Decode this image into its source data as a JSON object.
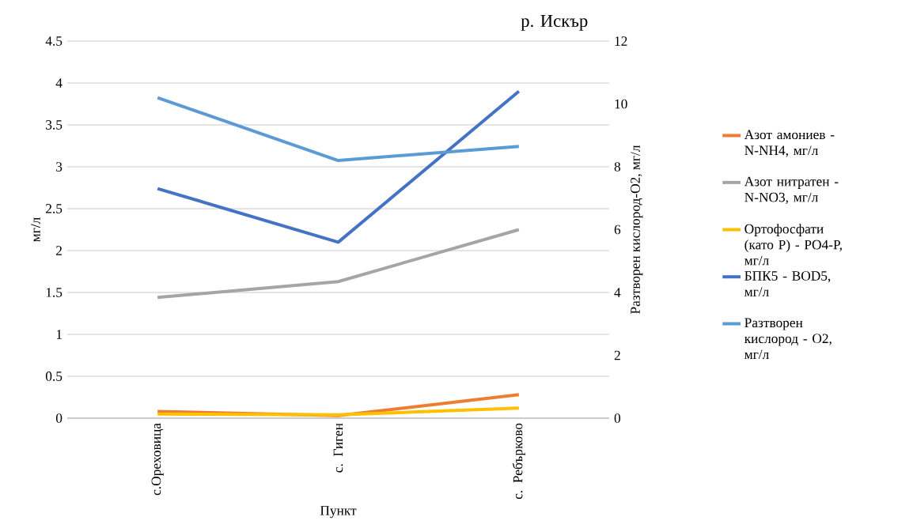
{
  "chart_data": {
    "type": "line",
    "title": "р. Искър",
    "xlabel": "Пункт",
    "ylabel": "мг/л",
    "y2label": "Разтворен кислород-О2, мг/л",
    "categories": [
      "с.Ореховица",
      "с. Гиген",
      "с. Ребърково"
    ],
    "series": [
      {
        "name": "Азот амониев - N-NH4, мг/л",
        "color": "#ed7d31",
        "values": [
          0.08,
          0.03,
          0.28
        ],
        "axis": "y"
      },
      {
        "name": "Азот нитратен - N-NO3, мг/л",
        "color": "#a5a5a5",
        "values": [
          1.44,
          1.63,
          2.25
        ],
        "axis": "y"
      },
      {
        "name": "Ортофосфати (като P) - PO4-P, мг/л",
        "color": "#ffc000",
        "values": [
          0.05,
          0.04,
          0.12
        ],
        "axis": "y"
      },
      {
        "name": "БПК5 - BOD5, мг/л",
        "color": "#4472c4",
        "values": [
          2.74,
          2.1,
          3.9
        ],
        "axis": "y"
      },
      {
        "name": "Разтворен кислород - O2, мг/л",
        "color": "#5b9bd5",
        "values": [
          10.2,
          8.2,
          8.65
        ],
        "axis": "y2"
      }
    ],
    "ylim": [
      0,
      4.5
    ],
    "yticks": [
      0,
      0.5,
      1,
      1.5,
      2,
      2.5,
      3,
      3.5,
      4,
      4.5
    ],
    "y2lim": [
      0,
      12
    ],
    "y2ticks": [
      0,
      2,
      4,
      6,
      8,
      10,
      12
    ],
    "grid": "y",
    "legend": "right"
  }
}
